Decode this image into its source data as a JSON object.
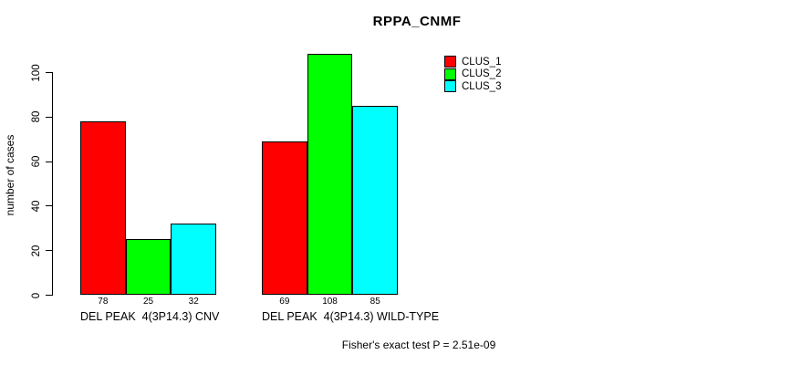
{
  "chart_data": {
    "type": "bar",
    "title": "RPPA_CNMF",
    "ylabel": "number of cases",
    "xlabel": "",
    "categories": [
      "DEL PEAK  4(3P14.3) CNV",
      "DEL PEAK  4(3P14.3) WILD-TYPE"
    ],
    "series": [
      {
        "name": "CLUS_1",
        "color": "#FF0000",
        "values": [
          78,
          69
        ]
      },
      {
        "name": "CLUS_2",
        "color": "#00FF00",
        "values": [
          25,
          108
        ]
      },
      {
        "name": "CLUS_3",
        "color": "#00FFFF",
        "values": [
          32,
          85
        ]
      }
    ],
    "yticks": [
      0,
      20,
      40,
      60,
      80,
      100
    ],
    "ylim": [
      0,
      100
    ],
    "grid": false,
    "bar_value_labels_shown": true,
    "legend_position": "top-right",
    "bar_border_color": "#000000",
    "background_color": "#FFFFFF",
    "annotation": "Fisher's exact test P = 2.51e-09"
  }
}
